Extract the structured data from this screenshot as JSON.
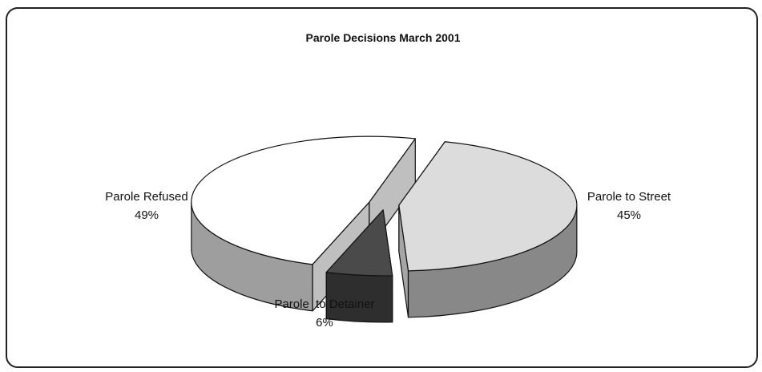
{
  "chart_data": {
    "type": "pie",
    "title": "Parole Decisions March 2001",
    "categories": [
      "Parole to Street",
      "Parole  to Detainer",
      "Parole Refused"
    ],
    "values": [
      45,
      6,
      49
    ],
    "value_labels": [
      "45%",
      "6%",
      "49%"
    ],
    "colors": [
      "#dcdcdc",
      "#4a4a4a",
      "#ffffff"
    ]
  }
}
